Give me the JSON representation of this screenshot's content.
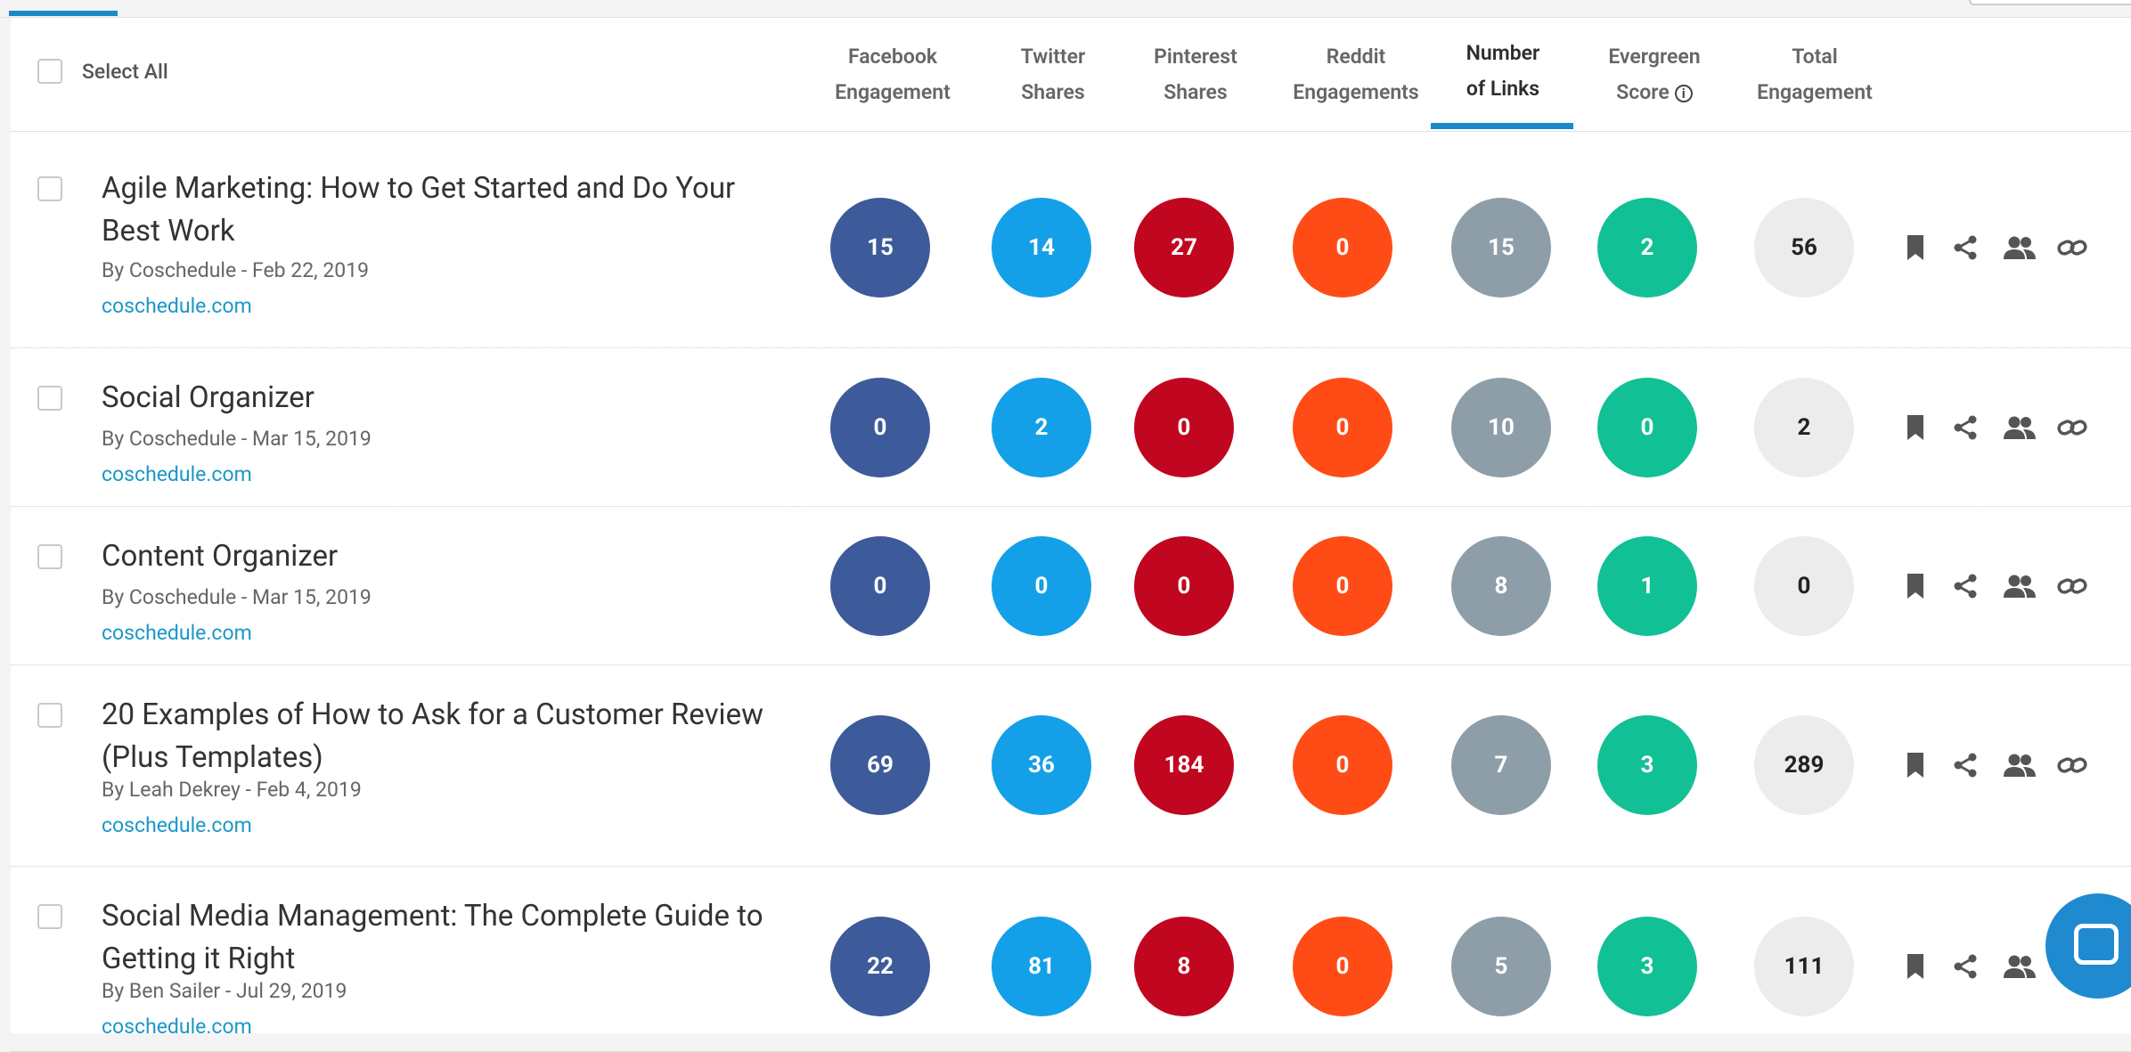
{
  "header": {
    "select_all": "Select All",
    "columns": [
      {
        "line1": "Facebook",
        "line2": "Engagement"
      },
      {
        "line1": "Twitter",
        "line2": "Shares"
      },
      {
        "line1": "Pinterest",
        "line2": "Shares"
      },
      {
        "line1": "Reddit",
        "line2": "Engagements"
      },
      {
        "line1": "Number",
        "line2": "of Links"
      },
      {
        "line1": "Evergreen",
        "line2": "Score"
      },
      {
        "line1": "Total",
        "line2": "Engagement"
      }
    ],
    "info_glyph": "i"
  },
  "colors": {
    "facebook": "#3d5a9a",
    "twitter": "#14a0e8",
    "pinterest": "#c0071f",
    "reddit": "#ff4c16",
    "links": "#8e9ea8",
    "evergreen": "#12c095",
    "total": "#ececec",
    "accent": "#1a8bc8"
  },
  "rows": [
    {
      "title": "Agile Marketing: How to Get Started and Do Your Best Work",
      "byline": "By Coschedule - Feb 22, 2019",
      "domain": "coschedule.com",
      "facebook": "15",
      "twitter": "14",
      "pinterest": "27",
      "reddit": "0",
      "links": "15",
      "evergreen": "2",
      "total": "56"
    },
    {
      "title": "Social Organizer",
      "byline": "By Coschedule - Mar 15, 2019",
      "domain": "coschedule.com",
      "facebook": "0",
      "twitter": "2",
      "pinterest": "0",
      "reddit": "0",
      "links": "10",
      "evergreen": "0",
      "total": "2"
    },
    {
      "title": "Content Organizer",
      "byline": "By Coschedule - Mar 15, 2019",
      "domain": "coschedule.com",
      "facebook": "0",
      "twitter": "0",
      "pinterest": "0",
      "reddit": "0",
      "links": "8",
      "evergreen": "1",
      "total": "0"
    },
    {
      "title": "20 Examples of How to Ask for a Customer Review (Plus Templates)",
      "byline": "By Leah Dekrey - Feb 4, 2019",
      "domain": "coschedule.com",
      "facebook": "69",
      "twitter": "36",
      "pinterest": "184",
      "reddit": "0",
      "links": "7",
      "evergreen": "3",
      "total": "289"
    },
    {
      "title": "Social Media Management: The Complete Guide to Getting it Right",
      "byline": "By Ben Sailer - Jul 29, 2019",
      "domain": "coschedule.com",
      "facebook": "22",
      "twitter": "81",
      "pinterest": "8",
      "reddit": "0",
      "links": "5",
      "evergreen": "3",
      "total": "111"
    }
  ],
  "actions": [
    "bookmark-icon",
    "share-icon",
    "users-icon",
    "link-icon"
  ],
  "chat_icon": "chat-bubble-icon"
}
